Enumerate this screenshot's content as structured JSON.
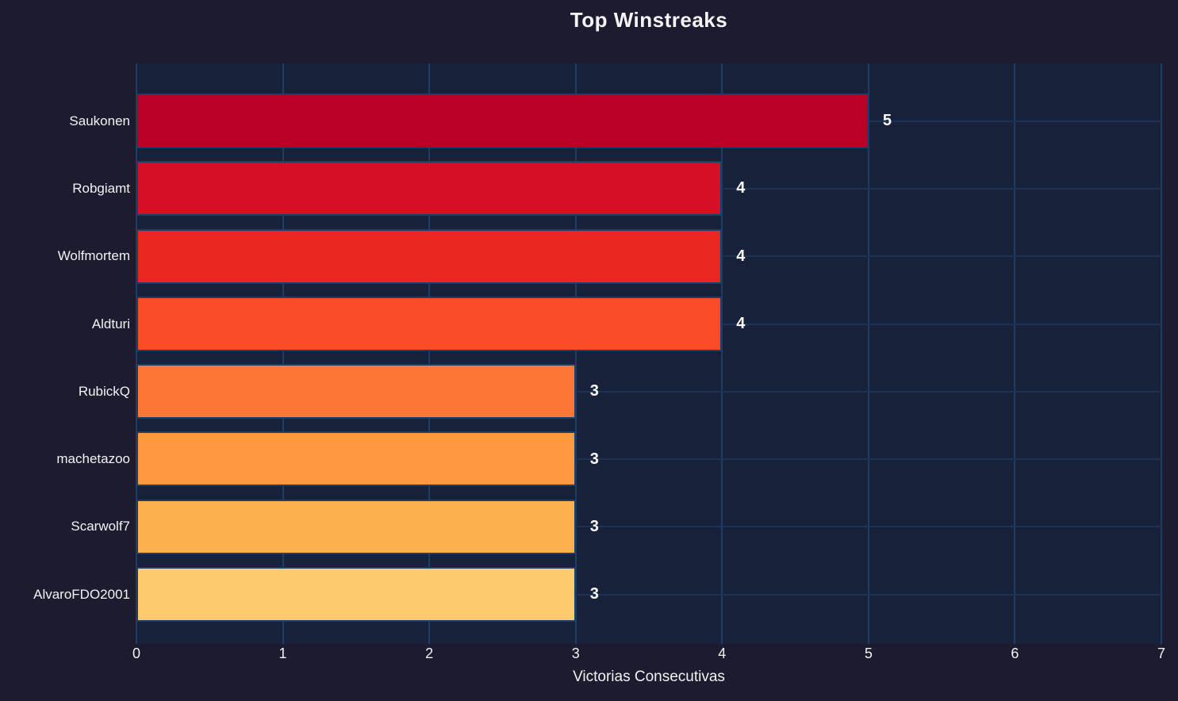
{
  "title": "Top Winstreaks",
  "chart_data": {
    "type": "bar",
    "orientation": "horizontal",
    "title": "Top Winstreaks",
    "xlabel": "Victorias Consecutivas",
    "ylabel": "",
    "categories": [
      "Saukonen",
      "Robgiamt",
      "Wolfmortem",
      "Aldturi",
      "RubickQ",
      "machetazoo",
      "Scarwolf7",
      "AlvaroFDO2001"
    ],
    "values": [
      5,
      4,
      4,
      4,
      3,
      3,
      3,
      3
    ],
    "value_labels": [
      "5",
      "4",
      "4",
      "4",
      "3",
      "3",
      "3",
      "3"
    ],
    "bar_colors": [
      "#bb0026",
      "#d60f26",
      "#e9261f",
      "#fa4b29",
      "#fc7635",
      "#fd9941",
      "#fdb04e",
      "#fdca6e"
    ],
    "xlim": [
      0,
      7
    ],
    "xticks": [
      "0",
      "1",
      "2",
      "3",
      "4",
      "5",
      "6",
      "7"
    ],
    "grid": true,
    "legend": false
  },
  "colors": {
    "page_bg": "#1c1b2f",
    "plot_bg": "#17213a",
    "grid_vertical": "#1e3c64",
    "grid_horizontal": "#1c3356",
    "bar_edge": "#1e3e66",
    "text": "#f2f2f4"
  }
}
